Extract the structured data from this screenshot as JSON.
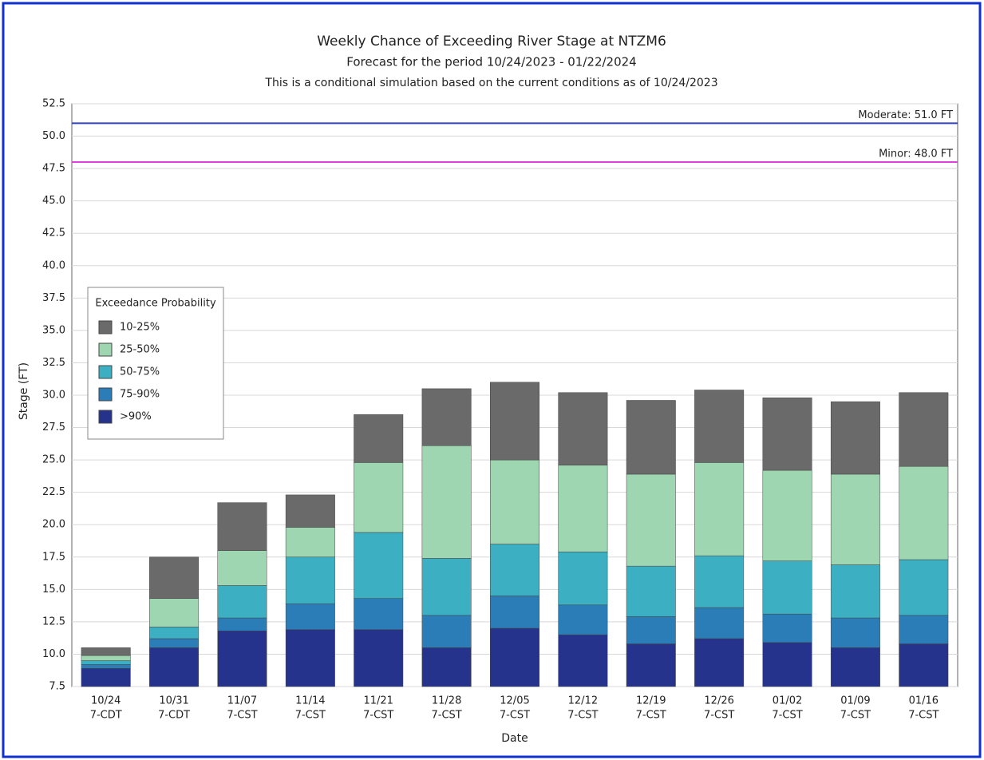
{
  "chart_data": {
    "type": "bar",
    "title": "Weekly Chance of Exceeding River Stage at NTZM6",
    "subtitle": "Forecast for the period 10/24/2023 - 01/22/2024",
    "note": "This is a conditional simulation based on the current conditions as of 10/24/2023",
    "y_label": "Stage (FT)",
    "x_label": "Date",
    "legend_title": "Exceedance Probability",
    "categories": [
      "10/24",
      "10/31",
      "11/07",
      "11/14",
      "11/21",
      "11/28",
      "12/05",
      "12/12",
      "12/19",
      "12/26",
      "01/02",
      "01/09",
      "01/16"
    ],
    "x_sublabels": [
      "7-CDT",
      "7-CDT",
      "7-CST",
      "7-CST",
      "7-CST",
      "7-CST",
      "7-CST",
      "7-CST",
      "7-CST",
      "7-CST",
      "7-CST",
      "7-CST",
      "7-CST"
    ],
    "series": [
      {
        "name": ">90%",
        "color": "#25338c",
        "values": [
          8.9,
          10.5,
          11.8,
          11.9,
          11.9,
          10.5,
          12.0,
          11.5,
          10.8,
          11.2,
          10.9,
          10.5,
          10.8
        ]
      },
      {
        "name": "75-90%",
        "color": "#2b7db8",
        "values": [
          9.2,
          11.2,
          12.8,
          13.9,
          14.3,
          13.0,
          14.5,
          13.8,
          12.9,
          13.6,
          13.1,
          12.8,
          13.0
        ]
      },
      {
        "name": "50-75%",
        "color": "#3cb0c2",
        "values": [
          9.5,
          12.1,
          15.3,
          17.5,
          19.4,
          17.4,
          18.5,
          17.9,
          16.8,
          17.6,
          17.2,
          16.9,
          17.3
        ]
      },
      {
        "name": "25-50%",
        "color": "#9ed6b1",
        "values": [
          9.9,
          14.3,
          18.0,
          19.8,
          24.8,
          26.1,
          25.0,
          24.6,
          23.9,
          24.8,
          24.2,
          23.9,
          24.5
        ]
      },
      {
        "name": "10-25%",
        "color": "#6a6a6a",
        "values": [
          10.5,
          17.5,
          21.7,
          22.3,
          28.5,
          30.5,
          31.0,
          30.2,
          29.6,
          30.4,
          29.8,
          29.5,
          30.2
        ]
      }
    ],
    "flood_levels": [
      {
        "label": "Minor: 48.0 FT",
        "value": 48.0,
        "color": "#e040e0"
      },
      {
        "label": "Moderate: 51.0 FT",
        "value": 51.0,
        "color": "#3040c0"
      }
    ],
    "ylim": [
      7.5,
      52.5
    ],
    "yticks": [
      {
        "value": 7.5,
        "label": "7.5"
      },
      {
        "value": 10,
        "label": "10.0"
      },
      12.5,
      {
        "value": 15,
        "label": "15.0"
      },
      17.5,
      {
        "value": 20,
        "label": "20.0"
      },
      22.5,
      {
        "value": 25,
        "label": "25.0"
      },
      27.5,
      {
        "value": 30,
        "label": "30.0"
      },
      32.5,
      {
        "value": 35,
        "label": "35.0"
      },
      37.5,
      {
        "value": 40,
        "label": "40.0"
      },
      42.5,
      {
        "value": 45,
        "label": "45.0"
      },
      47.5,
      {
        "value": 50,
        "label": "50.0"
      },
      52.5
    ],
    "grid": true
  }
}
